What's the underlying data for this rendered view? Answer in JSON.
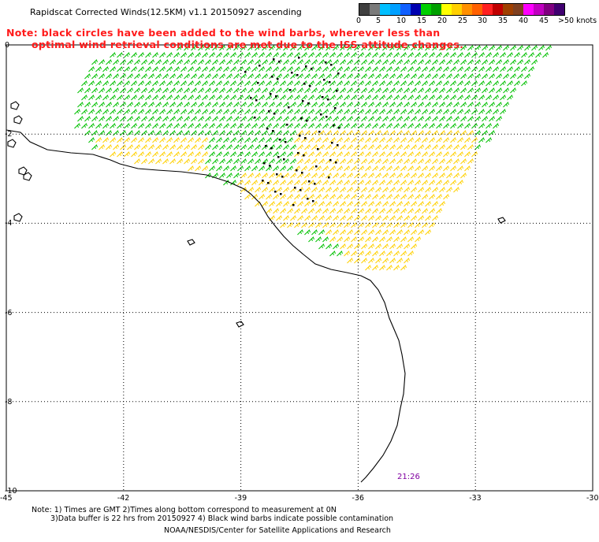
{
  "title": "Rapidscat Corrected Winds(12.5KM) v1.1 20150927 ascending",
  "warning": {
    "line1": "Note: black circles have been added to the wind barbs, wherever less than",
    "line2": "optimal wind retrieval conditions are met due to the ISS attitude changes."
  },
  "colorbar": {
    "colors": [
      "#404040",
      "#7a7a7a",
      "#00bfff",
      "#00a0ff",
      "#1060ff",
      "#0000b0",
      "#00d000",
      "#00a000",
      "#ffff00",
      "#ffd000",
      "#ff9000",
      "#ff6000",
      "#ff2020",
      "#c00000",
      "#a04000",
      "#804020",
      "#ff00ff",
      "#c000c0",
      "#800080",
      "#400070"
    ],
    "labels": [
      "0",
      "5",
      "10",
      "15",
      "20",
      "25",
      "30",
      "35",
      "40",
      "45",
      ">50 knots"
    ]
  },
  "map": {
    "lon_labels": [
      "-45",
      "-42",
      "-39",
      "-36",
      "-33",
      "-30"
    ],
    "lat_labels": [
      "0",
      "-2",
      "-4",
      "-6",
      "-8",
      "-10"
    ],
    "time_label": "21:26",
    "wind_colors": {
      "slow": "#0000b0",
      "medium": "#00c000",
      "fast": "#ffd000",
      "faster": "#ff9000"
    },
    "coast_color": "#000000",
    "grid_color": "#000000"
  },
  "footer": {
    "line1": "Note: 1) Times are GMT 2)Times along bottom correspond to measurement at 0N",
    "line2": "3)Data buffer is 22 hrs from 20150927 4) Black wind barbs indicate possible contamination",
    "line3": "NOAA/NESDIS/Center for Satellite Applications and Research"
  }
}
